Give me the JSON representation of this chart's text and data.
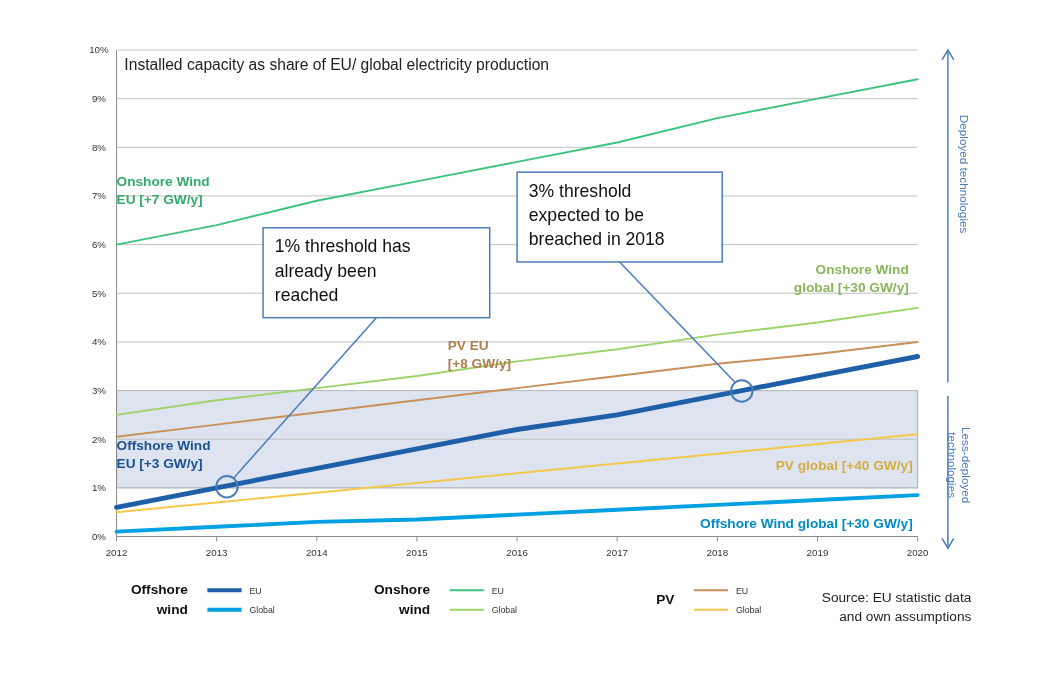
{
  "chart_data": {
    "type": "line",
    "title": "Installed capacity as share of EU/ global electricity production",
    "x": [
      2012,
      2013,
      2014,
      2015,
      2016,
      2017,
      2018,
      2019,
      2020
    ],
    "xlim": [
      2012,
      2020
    ],
    "xticks": [
      2012,
      2013,
      2014,
      2015,
      2016,
      2017,
      2018,
      2019,
      2020
    ],
    "ylim": [
      0,
      10
    ],
    "yticks": [
      {
        "value": 0,
        "label": "0%"
      },
      {
        "value": 1,
        "label": "1%"
      },
      {
        "value": 2,
        "label": "2%"
      },
      {
        "value": 3,
        "label": "3%"
      },
      {
        "value": 4,
        "label": "4%"
      },
      {
        "value": 5,
        "label": "5%"
      },
      {
        "value": 6,
        "label": "6%"
      },
      {
        "value": 7,
        "label": "7%"
      },
      {
        "value": 8,
        "label": "8%"
      },
      {
        "value": 9,
        "label": "9%"
      },
      {
        "value": 10,
        "label": "10%"
      }
    ],
    "grid": "y",
    "marker": "none",
    "line_style": "solid",
    "legend": "bottom",
    "series": [
      {
        "name": "EU",
        "color": "#1f5fa8",
        "values": [
          0.6,
          1.0,
          1.4,
          1.8,
          2.2,
          2.5,
          2.9,
          3.3,
          3.7
        ]
      },
      {
        "name": "Global",
        "color": "#00a0e3",
        "values": [
          0.1,
          0.2,
          0.3,
          0.35,
          0.45,
          0.55,
          0.65,
          0.75,
          0.85
        ]
      },
      {
        "name": "EU",
        "color": "#3cc47c",
        "values": [
          6.0,
          6.4,
          6.9,
          7.3,
          7.7,
          8.1,
          8.6,
          9.0,
          9.4
        ]
      },
      {
        "name": "Global",
        "color": "#9ed36a",
        "values": [
          2.5,
          2.8,
          3.05,
          3.3,
          3.6,
          3.85,
          4.15,
          4.4,
          4.7
        ]
      },
      {
        "name": "EU",
        "color": "#c8905a",
        "values": [
          2.05,
          2.3,
          2.55,
          2.8,
          3.05,
          3.3,
          3.55,
          3.75,
          4.0
        ]
      },
      {
        "name": "Global",
        "color": "#f5c84a",
        "values": [
          0.5,
          0.7,
          0.9,
          1.1,
          1.3,
          1.5,
          1.7,
          1.9,
          2.1
        ]
      }
    ],
    "bands": [
      {
        "axis": "y",
        "from": 1,
        "to": 3,
        "color": "#dde4f0"
      }
    ],
    "annotations": [
      "Offshore Wind\nEU [+3 GW/y]",
      "Offshore Wind global  [+30 GW/y]",
      "Onshore Wind\nEU [+7 GW/y]",
      "Onshore Wind\nglobal  [+30 GW/y]",
      "PV EU\n[+8 GW/y]",
      "PV global  [+40 GW/y]",
      "1% threshold has\nalready been\nreached",
      "3% threshold\nexpected to be\nbreached in 2018",
      "Deployed technologies",
      "Less-deployed\ntechnologies",
      "Offshore\nwind",
      "Onshore\nwind",
      "PV",
      "Source: EU statistic data\nand own assumptions"
    ]
  }
}
